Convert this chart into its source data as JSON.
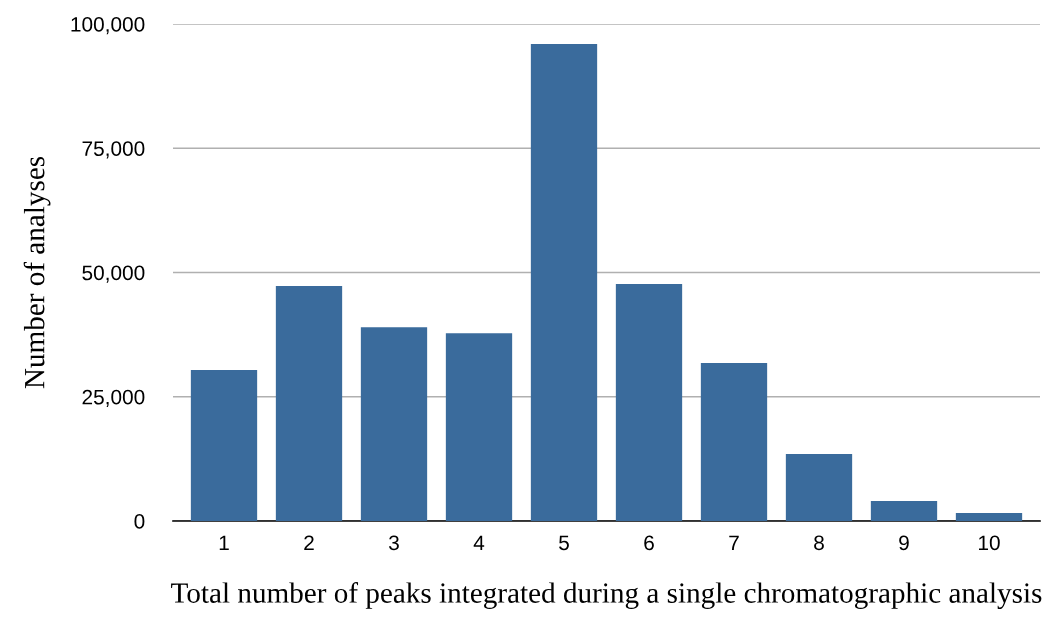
{
  "chart_data": {
    "type": "bar",
    "xlabel": "Total number of peaks integrated during a single chromatographic analysis",
    "ylabel": "Number of analyses",
    "categories": [
      "1",
      "2",
      "3",
      "4",
      "5",
      "6",
      "7",
      "8",
      "9",
      "10"
    ],
    "values": [
      30400,
      47300,
      39000,
      37800,
      96000,
      47700,
      31800,
      13500,
      4000,
      1600
    ],
    "color": "#3a6b9c",
    "ylim": [
      0,
      100000
    ],
    "yticks": [
      {
        "value": 0,
        "label": "0"
      },
      {
        "value": 25000,
        "label": "25,000"
      },
      {
        "value": 50000,
        "label": "50,000"
      },
      {
        "value": 75000,
        "label": "75,000"
      },
      {
        "value": 100000,
        "label": "100,000"
      }
    ],
    "grid": "y"
  }
}
